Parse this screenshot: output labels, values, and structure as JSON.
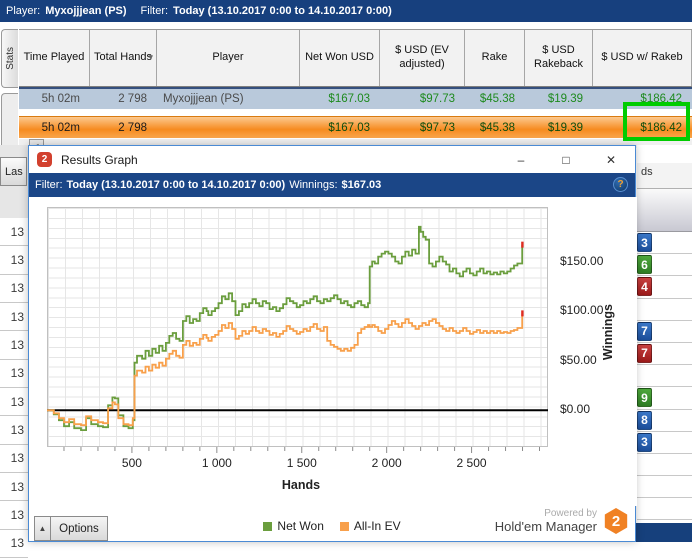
{
  "top_bar": {
    "player_label": "Player:",
    "player_value": "Myxojjjean (PS)",
    "filter_label": "Filter:",
    "filter_value": "Today (13.10.2017 0:00 to 14.10.2017 0:00)"
  },
  "stats_tab_label": "Stats",
  "last_button_label": "Las",
  "icons": {
    "sort_down": "▾",
    "scroll_left": "◄",
    "minimize": "–",
    "maximize": "□",
    "close": "✕",
    "help": "?",
    "options_up": "▲",
    "hm_logo": "2",
    "powered_logo": "2"
  },
  "table": {
    "headers": [
      "Time Played",
      "Total Hands",
      "Player",
      "Net Won USD",
      "$ USD (EV adjusted)",
      "Rake",
      "$ USD Rakeback",
      "$ USD w/ Rakeb"
    ],
    "rows": [
      {
        "time": "5h 02m",
        "hands": "2 798",
        "player": "Myxojjjean (PS)",
        "net_won": "$167.03",
        "ev": "$97.73",
        "rake": "$45.38",
        "rakeback": "$19.39",
        "usd_w_rakeback": "$186.42"
      },
      {
        "time": "5h 02m",
        "hands": "2 798",
        "player": "",
        "net_won": "$167.03",
        "ev": "$97.73",
        "rake": "$45.38",
        "rakeback": "$19.39",
        "usd_w_rakeback": "$186.42"
      }
    ]
  },
  "background": {
    "left_rows": [
      "13",
      "13",
      "13",
      "13",
      "13",
      "13",
      "13",
      "13",
      "13",
      "13",
      "13",
      "13"
    ],
    "right_header_fragment": "ds",
    "right_rows": [
      {
        "badge": "3",
        "color": "blue"
      },
      {
        "badge": "6",
        "color": "green"
      },
      {
        "badge": "4",
        "color": "red"
      },
      {
        "badge": null,
        "color": null
      },
      {
        "badge": "7",
        "color": "blue"
      },
      {
        "badge": "7",
        "color": "red"
      },
      {
        "badge": null,
        "color": null
      },
      {
        "badge": "9",
        "color": "green"
      },
      {
        "badge": "8",
        "color": "blue"
      },
      {
        "badge": "3",
        "color": "blue"
      },
      {
        "badge": null,
        "color": null
      },
      {
        "badge": null,
        "color": null
      },
      {
        "badge": null,
        "color": null
      }
    ]
  },
  "dialog": {
    "title": "Results Graph",
    "filter_bar": {
      "label": "Filter:",
      "value": "Today (13.10.2017 0:00 to 14.10.2017 0:00)",
      "winnings_label": "Winnings:",
      "winnings_value": "$167.03"
    },
    "options_label": "Options",
    "powered_by": {
      "line1": "Powered by",
      "line2": "Hold'em Manager"
    }
  },
  "chart_data": {
    "type": "line",
    "xlabel": "Hands",
    "ylabel": "Winnings",
    "xlim": [
      0,
      2950
    ],
    "ylim": [
      -37,
      205
    ],
    "grid": true,
    "legend_position": "bottom",
    "x_ticks": [
      {
        "v": 500,
        "label": "500"
      },
      {
        "v": 1000,
        "label": "1 000"
      },
      {
        "v": 1500,
        "label": "1 500"
      },
      {
        "v": 2000,
        "label": "2 000"
      },
      {
        "v": 2500,
        "label": "2 500"
      }
    ],
    "y_ticks": [
      {
        "v": 0,
        "label": "$0.00"
      },
      {
        "v": 50,
        "label": "$50.00"
      },
      {
        "v": 100,
        "label": "$100.00"
      },
      {
        "v": 150,
        "label": "$150.00"
      }
    ],
    "zero_line_color": "#000000",
    "end_marker_color": "#E02B20",
    "series": [
      {
        "name": "Net Won",
        "color": "#6B9E3E",
        "final_value": 167.03,
        "points": [
          [
            0,
            0
          ],
          [
            40,
            -4
          ],
          [
            70,
            -10
          ],
          [
            100,
            -16
          ],
          [
            130,
            -12
          ],
          [
            160,
            -18
          ],
          [
            200,
            -20
          ],
          [
            230,
            -8
          ],
          [
            260,
            -14
          ],
          [
            300,
            -16
          ],
          [
            330,
            -17
          ],
          [
            360,
            5
          ],
          [
            385,
            13
          ],
          [
            400,
            12
          ],
          [
            420,
            -5
          ],
          [
            450,
            -16
          ],
          [
            480,
            -18
          ],
          [
            505,
            -10
          ],
          [
            515,
            48
          ],
          [
            530,
            55
          ],
          [
            560,
            52
          ],
          [
            580,
            60
          ],
          [
            600,
            55
          ],
          [
            620,
            62
          ],
          [
            640,
            58
          ],
          [
            660,
            65
          ],
          [
            680,
            60
          ],
          [
            700,
            68
          ],
          [
            720,
            75
          ],
          [
            740,
            78
          ],
          [
            760,
            72
          ],
          [
            780,
            70
          ],
          [
            800,
            90
          ],
          [
            820,
            95
          ],
          [
            840,
            88
          ],
          [
            860,
            92
          ],
          [
            880,
            90
          ],
          [
            900,
            98
          ],
          [
            920,
            103
          ],
          [
            940,
            100
          ],
          [
            950,
            96
          ],
          [
            970,
            100
          ],
          [
            990,
            103
          ],
          [
            1010,
            108
          ],
          [
            1030,
            115
          ],
          [
            1050,
            112
          ],
          [
            1070,
            118
          ],
          [
            1090,
            110
          ],
          [
            1110,
            96
          ],
          [
            1130,
            100
          ],
          [
            1150,
            107
          ],
          [
            1170,
            104
          ],
          [
            1190,
            108
          ],
          [
            1210,
            112
          ],
          [
            1230,
            108
          ],
          [
            1250,
            105
          ],
          [
            1270,
            110
          ],
          [
            1290,
            108
          ],
          [
            1310,
            102
          ],
          [
            1330,
            104
          ],
          [
            1350,
            100
          ],
          [
            1370,
            103
          ],
          [
            1390,
            107
          ],
          [
            1410,
            113
          ],
          [
            1430,
            110
          ],
          [
            1450,
            108
          ],
          [
            1470,
            104
          ],
          [
            1490,
            106
          ],
          [
            1510,
            110
          ],
          [
            1530,
            108
          ],
          [
            1550,
            112
          ],
          [
            1570,
            115
          ],
          [
            1590,
            110
          ],
          [
            1610,
            108
          ],
          [
            1630,
            112
          ],
          [
            1650,
            110
          ],
          [
            1670,
            113
          ],
          [
            1690,
            116
          ],
          [
            1710,
            112
          ],
          [
            1730,
            108
          ],
          [
            1750,
            110
          ],
          [
            1770,
            106
          ],
          [
            1790,
            104
          ],
          [
            1810,
            108
          ],
          [
            1830,
            110
          ],
          [
            1850,
            106
          ],
          [
            1870,
            104
          ],
          [
            1890,
            108
          ],
          [
            1900,
            145
          ],
          [
            1915,
            150
          ],
          [
            1930,
            148
          ],
          [
            1950,
            155
          ],
          [
            1970,
            158
          ],
          [
            1990,
            160
          ],
          [
            2010,
            158
          ],
          [
            2030,
            155
          ],
          [
            2050,
            150
          ],
          [
            2070,
            148
          ],
          [
            2090,
            155
          ],
          [
            2110,
            160
          ],
          [
            2130,
            156
          ],
          [
            2150,
            162
          ],
          [
            2170,
            158
          ],
          [
            2190,
            185
          ],
          [
            2200,
            180
          ],
          [
            2215,
            175
          ],
          [
            2230,
            172
          ],
          [
            2250,
            148
          ],
          [
            2270,
            145
          ],
          [
            2290,
            150
          ],
          [
            2310,
            155
          ],
          [
            2330,
            150
          ],
          [
            2350,
            147
          ],
          [
            2370,
            140
          ],
          [
            2390,
            143
          ],
          [
            2410,
            138
          ],
          [
            2430,
            135
          ],
          [
            2450,
            140
          ],
          [
            2470,
            143
          ],
          [
            2490,
            138
          ],
          [
            2510,
            136
          ],
          [
            2530,
            140
          ],
          [
            2550,
            143
          ],
          [
            2570,
            138
          ],
          [
            2590,
            140
          ],
          [
            2610,
            137
          ],
          [
            2630,
            139
          ],
          [
            2650,
            137
          ],
          [
            2670,
            140
          ],
          [
            2690,
            138
          ],
          [
            2710,
            140
          ],
          [
            2730,
            143
          ],
          [
            2750,
            146
          ],
          [
            2770,
            148
          ],
          [
            2798,
            167.03
          ]
        ]
      },
      {
        "name": "All-In EV",
        "color": "#F8A04B",
        "final_value": 97.73,
        "points": [
          [
            0,
            0
          ],
          [
            40,
            -3
          ],
          [
            70,
            -8
          ],
          [
            100,
            -12
          ],
          [
            130,
            -9
          ],
          [
            160,
            -14
          ],
          [
            200,
            -15
          ],
          [
            230,
            -6
          ],
          [
            260,
            -10
          ],
          [
            300,
            -12
          ],
          [
            330,
            -13
          ],
          [
            360,
            2
          ],
          [
            385,
            8
          ],
          [
            400,
            6
          ],
          [
            420,
            -8
          ],
          [
            450,
            -14
          ],
          [
            480,
            -15
          ],
          [
            505,
            -8
          ],
          [
            515,
            35
          ],
          [
            530,
            40
          ],
          [
            560,
            38
          ],
          [
            580,
            44
          ],
          [
            600,
            40
          ],
          [
            620,
            46
          ],
          [
            640,
            43
          ],
          [
            660,
            48
          ],
          [
            680,
            45
          ],
          [
            700,
            52
          ],
          [
            720,
            57
          ],
          [
            740,
            60
          ],
          [
            760,
            55
          ],
          [
            780,
            53
          ],
          [
            800,
            66
          ],
          [
            820,
            70
          ],
          [
            840,
            65
          ],
          [
            860,
            68
          ],
          [
            880,
            66
          ],
          [
            900,
            72
          ],
          [
            920,
            76
          ],
          [
            940,
            73
          ],
          [
            950,
            70
          ],
          [
            970,
            74
          ],
          [
            990,
            76
          ],
          [
            1010,
            80
          ],
          [
            1030,
            86
          ],
          [
            1050,
            83
          ],
          [
            1070,
            88
          ],
          [
            1090,
            82
          ],
          [
            1110,
            72
          ],
          [
            1130,
            75
          ],
          [
            1150,
            80
          ],
          [
            1170,
            77
          ],
          [
            1190,
            80
          ],
          [
            1210,
            84
          ],
          [
            1230,
            80
          ],
          [
            1250,
            78
          ],
          [
            1270,
            82
          ],
          [
            1290,
            80
          ],
          [
            1310,
            76
          ],
          [
            1330,
            78
          ],
          [
            1350,
            74
          ],
          [
            1370,
            77
          ],
          [
            1390,
            80
          ],
          [
            1410,
            85
          ],
          [
            1430,
            82
          ],
          [
            1450,
            80
          ],
          [
            1470,
            77
          ],
          [
            1490,
            79
          ],
          [
            1510,
            82
          ],
          [
            1530,
            80
          ],
          [
            1550,
            84
          ],
          [
            1570,
            87
          ],
          [
            1590,
            82
          ],
          [
            1610,
            80
          ],
          [
            1630,
            84
          ],
          [
            1650,
            70
          ],
          [
            1670,
            66
          ],
          [
            1690,
            64
          ],
          [
            1710,
            62
          ],
          [
            1730,
            60
          ],
          [
            1750,
            62
          ],
          [
            1770,
            60
          ],
          [
            1790,
            63
          ],
          [
            1810,
            66
          ],
          [
            1830,
            78
          ],
          [
            1850,
            82
          ],
          [
            1870,
            84
          ],
          [
            1890,
            86
          ],
          [
            1900,
            84
          ],
          [
            1915,
            86
          ],
          [
            1930,
            84
          ],
          [
            1950,
            80
          ],
          [
            1970,
            78
          ],
          [
            1990,
            82
          ],
          [
            2010,
            86
          ],
          [
            2030,
            90
          ],
          [
            2050,
            87
          ],
          [
            2070,
            84
          ],
          [
            2090,
            88
          ],
          [
            2110,
            92
          ],
          [
            2130,
            88
          ],
          [
            2150,
            85
          ],
          [
            2170,
            82
          ],
          [
            2190,
            85
          ],
          [
            2210,
            88
          ],
          [
            2230,
            86
          ],
          [
            2250,
            90
          ],
          [
            2270,
            92
          ],
          [
            2290,
            88
          ],
          [
            2310,
            85
          ],
          [
            2330,
            82
          ],
          [
            2350,
            80
          ],
          [
            2370,
            83
          ],
          [
            2390,
            80
          ],
          [
            2410,
            78
          ],
          [
            2430,
            80
          ],
          [
            2450,
            83
          ],
          [
            2470,
            80
          ],
          [
            2490,
            77
          ],
          [
            2510,
            79
          ],
          [
            2530,
            81
          ],
          [
            2550,
            78
          ],
          [
            2570,
            80
          ],
          [
            2590,
            78
          ],
          [
            2610,
            80
          ],
          [
            2630,
            78
          ],
          [
            2650,
            80
          ],
          [
            2670,
            78
          ],
          [
            2690,
            79
          ],
          [
            2710,
            78
          ],
          [
            2730,
            80
          ],
          [
            2750,
            81
          ],
          [
            2770,
            83
          ],
          [
            2798,
            97.73
          ]
        ]
      }
    ]
  },
  "colors": {
    "top_bar": "#17407E",
    "dialog_filter_bar": "#1B4687",
    "row_highlight": "#F68B1F",
    "row1_bg": "#B9C9DB",
    "money_green": "#1E8A1E",
    "annotation_green": "#00CC00"
  }
}
